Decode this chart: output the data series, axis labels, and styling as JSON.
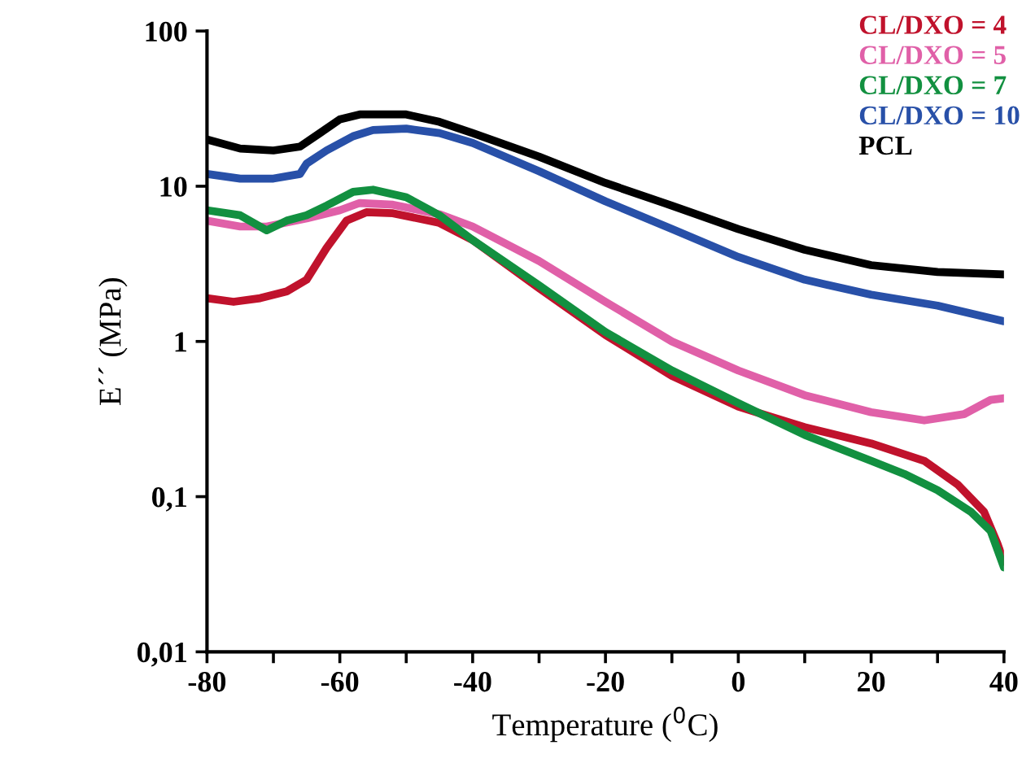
{
  "chart_data": {
    "type": "line",
    "xlabel": "Temperature ($^{0}$C)",
    "ylabel": "E´´ (MPa)",
    "log": "y",
    "xlim": [
      -80,
      40
    ],
    "xticks": [
      -80,
      {
        "value": -70,
        "label": null
      },
      -60,
      {
        "value": -50,
        "label": null
      },
      -40,
      {
        "value": -30,
        "label": null
      },
      -20,
      {
        "value": -10,
        "label": null
      },
      0,
      {
        "value": 10,
        "label": null
      },
      20,
      {
        "value": 30,
        "label": null
      },
      40
    ],
    "ylim": [
      0.01,
      100
    ],
    "yticks": [
      {
        "value": 0.01,
        "label": "0,01"
      },
      {
        "value": 0.1,
        "label": "0,1"
      },
      1,
      10,
      100
    ],
    "grid": false,
    "legend": "top right",
    "marker": "none",
    "line_style": "solid",
    "series": [
      {
        "name": "CL/DXO = 4",
        "color": "#c0122c",
        "x": [
          -80,
          -76,
          -72,
          -68,
          -65,
          -62,
          -59,
          -56,
          -52,
          -45,
          -40,
          -30,
          -20,
          -10,
          0,
          10,
          20,
          28,
          33,
          37,
          39,
          40
        ],
        "values": [
          1.9,
          1.8,
          1.9,
          2.1,
          2.5,
          4,
          6,
          6.8,
          6.7,
          5.8,
          4.5,
          2.2,
          1.1,
          0.6,
          0.38,
          0.28,
          0.22,
          0.17,
          0.12,
          0.08,
          0.05,
          0.038
        ]
      },
      {
        "name": "CL/DXO = 5",
        "color": "#e060a8",
        "x": [
          -80,
          -75,
          -71,
          -65,
          -60,
          -57,
          -52,
          -45,
          -40,
          -30,
          -20,
          -10,
          0,
          10,
          20,
          28,
          34,
          38,
          40
        ],
        "values": [
          6,
          5.5,
          5.5,
          6.2,
          7,
          7.8,
          7.6,
          6.6,
          5.5,
          3.3,
          1.8,
          1.0,
          0.65,
          0.45,
          0.35,
          0.31,
          0.34,
          0.42,
          0.43
        ]
      },
      {
        "name": "CL/DXO = 7",
        "color": "#129040",
        "x": [
          -80,
          -75,
          -71,
          -68,
          -65,
          -62,
          -58,
          -55,
          -50,
          -45,
          -40,
          -30,
          -20,
          -10,
          0,
          10,
          20,
          25,
          30,
          35,
          38,
          40
        ],
        "values": [
          7,
          6.5,
          5.2,
          6,
          6.5,
          7.5,
          9.2,
          9.5,
          8.5,
          6.5,
          4.5,
          2.3,
          1.15,
          0.65,
          0.4,
          0.25,
          0.17,
          0.14,
          0.11,
          0.08,
          0.06,
          0.035
        ]
      },
      {
        "name": "CL/DXO = 10",
        "color": "#2850a8",
        "x": [
          -80,
          -75,
          -70,
          -66,
          -65,
          -62,
          -58,
          -55,
          -50,
          -45,
          -40,
          -30,
          -20,
          -10,
          0,
          10,
          20,
          30,
          40
        ],
        "values": [
          12,
          11.2,
          11.2,
          12,
          14,
          17,
          21,
          23,
          23.5,
          22,
          19,
          12.5,
          8,
          5.3,
          3.5,
          2.5,
          2.0,
          1.7,
          1.35
        ]
      },
      {
        "name": "PCL",
        "color": "#000000",
        "x": [
          -80,
          -75,
          -70,
          -66,
          -63,
          -60,
          -57,
          -50,
          -45,
          -40,
          -30,
          -20,
          -10,
          0,
          10,
          20,
          30,
          40
        ],
        "values": [
          20,
          17.5,
          17,
          18,
          22,
          27,
          29,
          29,
          26,
          22,
          15.5,
          10.5,
          7.5,
          5.3,
          3.9,
          3.1,
          2.8,
          2.7
        ]
      }
    ]
  }
}
